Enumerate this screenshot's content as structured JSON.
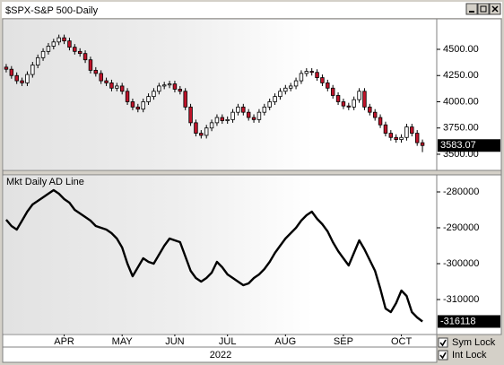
{
  "window": {
    "controls": [
      {
        "label": "Sym Lock",
        "checked": true
      },
      {
        "label": "Int Lock",
        "checked": true
      }
    ]
  },
  "chart_data": [
    {
      "type": "candlestick",
      "title": "$SPX-S&P 500-Daily",
      "up_color": "#ffffff",
      "down_color": "#c0142a",
      "open": [
        4330,
        4310,
        4250,
        4200,
        4180,
        4260,
        4350,
        4420,
        4480,
        4530,
        4570,
        4610,
        4580,
        4520,
        4480,
        4460,
        4400,
        4300,
        4270,
        4200,
        4180,
        4130,
        4150,
        4100,
        4000,
        3950,
        3930,
        4000,
        4050,
        4100,
        4150,
        4160,
        4170,
        4120,
        4100,
        3950,
        3800,
        3700,
        3680,
        3750,
        3800,
        3850,
        3820,
        3830,
        3900,
        3950,
        3900,
        3850,
        3830,
        3900,
        3950,
        4000,
        4050,
        4100,
        4130,
        4150,
        4200,
        4270,
        4290,
        4280,
        4230,
        4180,
        4130,
        4060,
        4000,
        3960,
        3950,
        4020,
        4100,
        3950,
        3900,
        3850,
        3780,
        3700,
        3660,
        3640,
        3660,
        3760,
        3700,
        3610
      ],
      "high": [
        4360,
        4340,
        4280,
        4230,
        4290,
        4380,
        4450,
        4510,
        4560,
        4600,
        4640,
        4640,
        4610,
        4550,
        4510,
        4490,
        4430,
        4330,
        4300,
        4230,
        4210,
        4180,
        4180,
        4130,
        4030,
        3980,
        4030,
        4080,
        4130,
        4180,
        4190,
        4200,
        4200,
        4150,
        4130,
        3980,
        3830,
        3730,
        3780,
        3830,
        3880,
        3880,
        3860,
        3930,
        3980,
        3980,
        3930,
        3880,
        3930,
        3980,
        4030,
        4080,
        4130,
        4160,
        4180,
        4230,
        4300,
        4320,
        4320,
        4310,
        4260,
        4210,
        4160,
        4090,
        4030,
        3990,
        4050,
        4130,
        4130,
        3980,
        3930,
        3880,
        3810,
        3730,
        3690,
        3690,
        3790,
        3790,
        3730,
        3640
      ],
      "low": [
        4280,
        4220,
        4170,
        4150,
        4150,
        4230,
        4320,
        4390,
        4450,
        4500,
        4540,
        4550,
        4490,
        4450,
        4430,
        4370,
        4270,
        4240,
        4170,
        4150,
        4100,
        4100,
        4070,
        3970,
        3920,
        3900,
        3900,
        3970,
        4020,
        4070,
        4120,
        4130,
        4090,
        4070,
        3920,
        3770,
        3670,
        3650,
        3650,
        3720,
        3770,
        3790,
        3790,
        3800,
        3870,
        3870,
        3820,
        3800,
        3800,
        3870,
        3920,
        3970,
        4020,
        4070,
        4100,
        4120,
        4170,
        4240,
        4250,
        4200,
        4150,
        4100,
        4030,
        3970,
        3930,
        3920,
        3920,
        3990,
        3920,
        3870,
        3820,
        3750,
        3670,
        3630,
        3610,
        3610,
        3630,
        3670,
        3580,
        3520
      ],
      "close": [
        4310,
        4250,
        4200,
        4180,
        4260,
        4350,
        4420,
        4480,
        4530,
        4570,
        4610,
        4580,
        4520,
        4480,
        4460,
        4400,
        4300,
        4270,
        4200,
        4180,
        4130,
        4150,
        4100,
        4000,
        3950,
        3930,
        4000,
        4050,
        4100,
        4150,
        4160,
        4170,
        4120,
        4100,
        3950,
        3800,
        3700,
        3680,
        3750,
        3800,
        3850,
        3820,
        3830,
        3900,
        3950,
        3900,
        3850,
        3830,
        3900,
        3950,
        4000,
        4050,
        4100,
        4130,
        4150,
        4200,
        4270,
        4290,
        4280,
        4230,
        4180,
        4130,
        4060,
        4000,
        3960,
        3950,
        4020,
        4100,
        3950,
        3900,
        3850,
        3780,
        3700,
        3660,
        3640,
        3660,
        3760,
        3700,
        3610,
        3583.07
      ],
      "xlim": [
        -0.5,
        79.5
      ],
      "ylim": [
        3363,
        4782
      ],
      "yticks": [
        {
          "value": 3500,
          "label": "3500.00"
        },
        {
          "value": 3750,
          "label": "3750.00"
        },
        {
          "value": 4000,
          "label": "4000.00"
        },
        {
          "value": 4250,
          "label": "4250.00"
        },
        {
          "value": 4500,
          "label": "4500.00"
        }
      ]
    },
    {
      "type": "line",
      "title": "Mkt Daily AD Line",
      "color": "#000000",
      "values": [
        -287750,
        -289500,
        -290500,
        -288000,
        -285500,
        -283500,
        -282500,
        -281500,
        -280500,
        -279500,
        -280500,
        -282000,
        -283000,
        -285000,
        -286000,
        -287000,
        -288000,
        -289500,
        -290000,
        -290500,
        -291500,
        -293000,
        -295500,
        -300000,
        -303500,
        -301000,
        -298500,
        -299500,
        -300000,
        -297500,
        -295000,
        -293000,
        -293500,
        -294000,
        -298000,
        -302000,
        -304000,
        -305000,
        -304000,
        -302500,
        -299500,
        -301000,
        -303000,
        -304000,
        -305000,
        -306000,
        -305500,
        -304000,
        -303000,
        -301500,
        -299500,
        -297000,
        -295000,
        -293000,
        -291500,
        -290000,
        -288000,
        -286500,
        -285500,
        -287500,
        -289000,
        -291000,
        -294000,
        -296500,
        -298500,
        -300500,
        -297000,
        -293500,
        -296000,
        -299000,
        -302000,
        -307000,
        -312500,
        -313500,
        -311000,
        -307500,
        -309000,
        -313500,
        -315000,
        -316118
      ],
      "xlim": [
        -0.5,
        79.5
      ],
      "ylim": [
        -319500,
        -275500
      ],
      "yticks": [
        -310000,
        -300000,
        -290000,
        -280000
      ],
      "xticks": [
        {
          "value": 11,
          "label": "APR"
        },
        {
          "value": 22,
          "label": "MAY"
        },
        {
          "value": 32,
          "label": "JUN"
        },
        {
          "value": 42,
          "label": "JUL"
        },
        {
          "value": 53,
          "label": "AUG"
        },
        {
          "value": 64,
          "label": "SEP"
        },
        {
          "value": 75,
          "label": "OCT"
        }
      ],
      "xlabel": "2022"
    }
  ]
}
